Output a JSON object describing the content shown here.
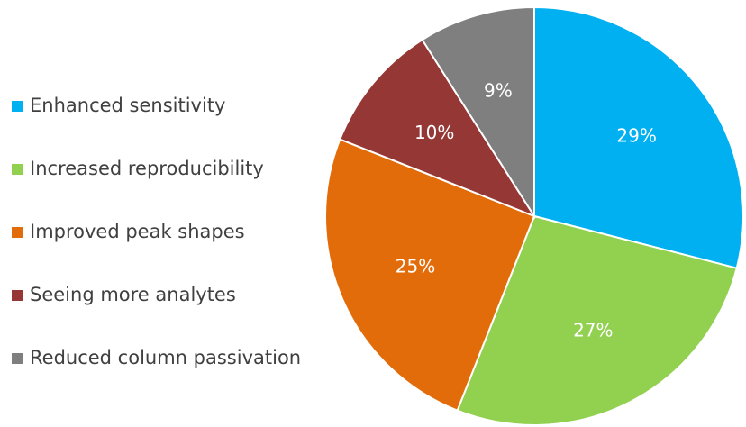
{
  "chart_data": {
    "type": "pie",
    "categories": [
      "Enhanced sensitivity",
      "Increased reproducibility",
      "Improved peak shapes",
      "Seeing more analytes",
      "Reduced column passivation"
    ],
    "values": [
      29,
      27,
      25,
      10,
      9
    ],
    "value_labels": [
      "29%",
      "27%",
      "25%",
      "10%",
      "9%"
    ],
    "colors": [
      "#00b0f0",
      "#92d050",
      "#e36c0a",
      "#953735",
      "#7f7f7f"
    ],
    "legend": "left"
  }
}
